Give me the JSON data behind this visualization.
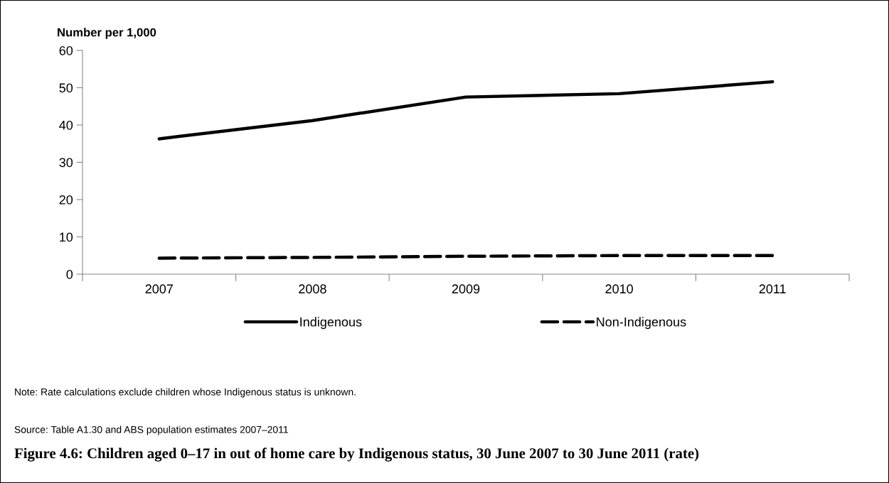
{
  "chart_data": {
    "type": "line",
    "title": "Figure 4.6: Children aged 0–17 in out of home care by Indigenous status, 30 June 2007 to 30 June 2011 (rate)",
    "ylabel": "Number per 1,000",
    "categories": [
      "2007",
      "2008",
      "2009",
      "2010",
      "2011"
    ],
    "series": [
      {
        "name": "Indigenous",
        "color": "#000000",
        "line_style": "solid",
        "values": [
          36.3,
          41.2,
          47.5,
          48.4,
          51.6
        ]
      },
      {
        "name": "Non-Indigenous",
        "color": "#000000",
        "line_style": "dashed",
        "values": [
          4.3,
          4.5,
          4.8,
          5.0,
          5.0
        ]
      }
    ],
    "ylim": [
      0,
      60
    ],
    "yticks": [
      0,
      10,
      20,
      30,
      40,
      50,
      60
    ],
    "grid": false,
    "legend": "bottom",
    "marker": "none",
    "annotations": [
      "Note: Rate calculations exclude children whose Indigenous status is unknown.",
      "Source: Table A1.30 and ABS population estimates 2007–2011"
    ]
  }
}
